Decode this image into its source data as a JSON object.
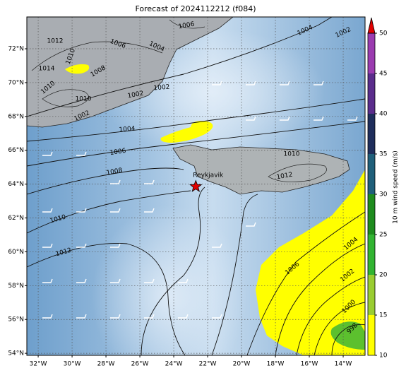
{
  "chart_data": {
    "type": "map",
    "title": "Forecast of 2024112212 (f084)",
    "lonlim": [
      -32.67,
      -12.71
    ],
    "latlim": [
      53.88,
      73.88
    ],
    "lonticks": [
      {
        "value": -32,
        "label": "32°W"
      },
      {
        "value": -30,
        "label": "30°W"
      },
      {
        "value": -28,
        "label": "28°W"
      },
      {
        "value": -26,
        "label": "26°W"
      },
      {
        "value": -24,
        "label": "24°W"
      },
      {
        "value": -22,
        "label": "22°W"
      },
      {
        "value": -20,
        "label": "20°W"
      },
      {
        "value": -18,
        "label": "18°W"
      },
      {
        "value": -16,
        "label": "16°W"
      },
      {
        "value": -14,
        "label": "14°W"
      }
    ],
    "latticks": [
      {
        "value": 54,
        "label": "54°N"
      },
      {
        "value": 56,
        "label": "56°N"
      },
      {
        "value": 58,
        "label": "58°N"
      },
      {
        "value": 60,
        "label": "60°N"
      },
      {
        "value": 62,
        "label": "62°N"
      },
      {
        "value": 64,
        "label": "64°N"
      },
      {
        "value": 66,
        "label": "66°N"
      },
      {
        "value": 68,
        "label": "68°N"
      },
      {
        "value": 70,
        "label": "70°N"
      },
      {
        "value": 72,
        "label": "72°N"
      }
    ],
    "grid": true,
    "point": {
      "name": "Reykjavik",
      "lon": -22.7,
      "lat": 63.86,
      "color": "#e00000"
    },
    "contour_labels": [
      1006,
      1012,
      1006,
      1004,
      1004,
      1002,
      1014,
      1010,
      1008,
      1010,
      1010,
      1002,
      1002,
      1002,
      1004,
      1006,
      1008,
      1010,
      1012,
      1010,
      1012,
      1004,
      1006,
      1002,
      1000,
      998
    ],
    "colorbar": {
      "label": "10 m wind speed (m/s)",
      "ticks": [
        10,
        15,
        20,
        25,
        30,
        35,
        40,
        45,
        50
      ],
      "colors": [
        "#ffff00",
        "#9acd32",
        "#32b432",
        "#1e8c1e",
        "#1f5f7a",
        "#1e2d5c",
        "#5b2c8c",
        "#9b3bb0"
      ],
      "extend_color": "#e00000"
    }
  }
}
